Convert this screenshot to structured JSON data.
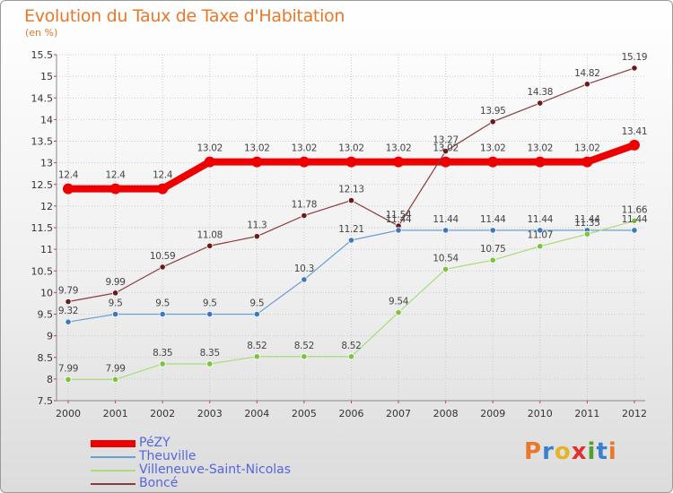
{
  "title": "Evolution du Taux de Taxe d'Habitation",
  "unit_label": "(en %)",
  "logo": {
    "letters": [
      "P",
      "r",
      "o",
      "x",
      "i",
      "t",
      "i"
    ],
    "colors": [
      "#e8782a",
      "#3a7fd0",
      "#e8b22a",
      "#e03030",
      "#50a030",
      "#3a7fd0",
      "#e8782a"
    ]
  },
  "chart_data": {
    "type": "line",
    "x": [
      "2000",
      "2001",
      "2002",
      "2003",
      "2004",
      "2005",
      "2006",
      "2007",
      "2008",
      "2009",
      "2010",
      "2011",
      "2012"
    ],
    "ylim": [
      7.5,
      15.5
    ],
    "yticks": [
      "7.5",
      "8",
      "8.5",
      "9",
      "9.5",
      "10",
      "10.5",
      "11",
      "11.5",
      "12",
      "12.5",
      "13",
      "13.5",
      "14",
      "14.5",
      "15",
      "15.5"
    ],
    "grid": true,
    "legend_position": "bottom-left",
    "series": [
      {
        "name": "PéZY",
        "color": "#ee0000",
        "point_color": "#ee0000",
        "values": [
          12.4,
          12.4,
          12.4,
          13.02,
          13.02,
          13.02,
          13.02,
          13.02,
          13.02,
          13.02,
          13.02,
          13.02,
          13.41
        ],
        "labels": [
          "12.4",
          "12.4",
          "12.4",
          "13.02",
          "13.02",
          "13.02",
          "13.02",
          "13.02",
          "13.02",
          "13.02",
          "13.02",
          "13.02",
          "13.41"
        ]
      },
      {
        "name": "Theuville",
        "color": "#6a9fd4",
        "point_color": "#3a78c0",
        "values": [
          9.32,
          9.5,
          9.5,
          9.5,
          9.5,
          10.3,
          11.21,
          11.44,
          11.44,
          11.44,
          11.44,
          11.44,
          11.44
        ],
        "labels": [
          "9.32",
          "9.5",
          "9.5",
          "9.5",
          "9.5",
          "10.3",
          "11.21",
          "11.44",
          "11.44",
          "11.44",
          "11.44",
          "11.44",
          "11.44"
        ]
      },
      {
        "name": "Villeneuve-Saint-Nicolas",
        "color": "#a8dc7c",
        "point_color": "#7ac43c",
        "values": [
          7.99,
          7.99,
          8.35,
          8.35,
          8.52,
          8.52,
          8.52,
          9.54,
          10.54,
          10.75,
          11.07,
          11.35,
          11.66
        ],
        "labels": [
          "7.99",
          "7.99",
          "8.35",
          "8.35",
          "8.52",
          "8.52",
          "8.52",
          "9.54",
          "10.54",
          "10.75",
          "11.07",
          "11.35",
          "11.66"
        ]
      },
      {
        "name": "Boncé",
        "color": "#8a3a3a",
        "point_color": "#6a1a1a",
        "values": [
          9.79,
          9.99,
          10.59,
          11.08,
          11.3,
          11.78,
          12.13,
          11.54,
          13.27,
          13.95,
          14.38,
          14.82,
          15.19
        ],
        "labels": [
          "9.79",
          "9.99",
          "10.59",
          "11.08",
          "11.3",
          "11.78",
          "12.13",
          "11.54",
          "13.27",
          "13.95",
          "14.38",
          "14.82",
          "15.19"
        ]
      }
    ]
  }
}
